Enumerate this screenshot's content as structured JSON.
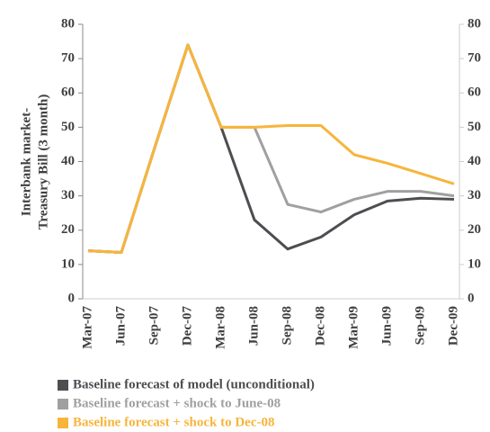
{
  "chart_data": {
    "type": "line",
    "ylabel": [
      "Interbank market-",
      "Treasury Bill (3 month)"
    ],
    "categories": [
      "Mar-07",
      "Jun-07",
      "Sep-07",
      "Dec-07",
      "Mar-08",
      "Jun-08",
      "Sep-08",
      "Dec-08",
      "Mar-09",
      "Jun-09",
      "Sep-09",
      "Dec-09"
    ],
    "series": [
      {
        "name": "Baseline forecast of model (unconditional)",
        "color": "#4d4d52",
        "values": [
          14,
          13.5,
          44,
          74,
          50,
          23,
          14.5,
          18,
          24.5,
          28.5,
          29.3,
          29
        ]
      },
      {
        "name": "Baseline forecast + shock to June-08",
        "color": "#a0a0a0",
        "values": [
          14,
          13.5,
          44,
          74,
          50,
          50,
          27.5,
          25.3,
          29,
          31.3,
          31.3,
          30
        ]
      },
      {
        "name": "Baseline forecast + shock to Dec-08",
        "color": "#f7b53b",
        "values": [
          14,
          13.5,
          44,
          74,
          50,
          50,
          50.5,
          50.5,
          42,
          39.5,
          36.5,
          33.5
        ]
      }
    ],
    "ylim": [
      0,
      80
    ],
    "yticks": [
      0,
      10,
      20,
      30,
      40,
      50,
      60,
      70,
      80
    ],
    "y2lim": [
      0,
      80
    ],
    "y2ticks": [
      0,
      10,
      20,
      30,
      40,
      50,
      60,
      70,
      80
    ],
    "grid": false
  }
}
